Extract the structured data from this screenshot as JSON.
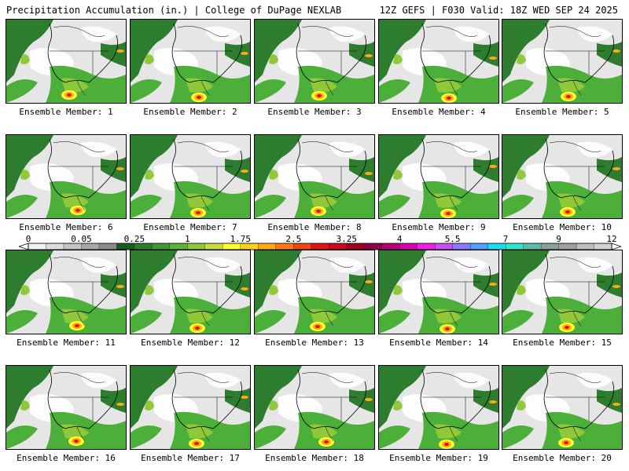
{
  "header": {
    "title_left": "Precipitation Accumulation (in.) | College of DuPage NEXLAB",
    "title_right": "12Z GEFS | F030 Valid: 18Z WED SEP 24 2025"
  },
  "members": [
    {
      "label": "Ensemble Member: 1"
    },
    {
      "label": "Ensemble Member: 2"
    },
    {
      "label": "Ensemble Member: 3"
    },
    {
      "label": "Ensemble Member: 4"
    },
    {
      "label": "Ensemble Member: 5"
    },
    {
      "label": "Ensemble Member: 6"
    },
    {
      "label": "Ensemble Member: 7"
    },
    {
      "label": "Ensemble Member: 8"
    },
    {
      "label": "Ensemble Member: 9"
    },
    {
      "label": "Ensemble Member: 10"
    },
    {
      "label": "Ensemble Member: 11"
    },
    {
      "label": "Ensemble Member: 12"
    },
    {
      "label": "Ensemble Member: 13"
    },
    {
      "label": "Ensemble Member: 14"
    },
    {
      "label": "Ensemble Member: 15"
    },
    {
      "label": "Ensemble Member: 16"
    },
    {
      "label": "Ensemble Member: 17"
    },
    {
      "label": "Ensemble Member: 18"
    },
    {
      "label": "Ensemble Member: 19"
    },
    {
      "label": "Ensemble Member: 20"
    }
  ],
  "colorbar": {
    "tick_labels": [
      "0",
      "0.05",
      "0.25",
      "1",
      "1.75",
      "2.5",
      "3.25",
      "4",
      "5.5",
      "7",
      "9",
      "12"
    ],
    "colors": [
      "#f2f2f2",
      "#dcdcdc",
      "#c4c4c4",
      "#a8a8a8",
      "#8c8c8c",
      "#1e5a1e",
      "#2e7d2e",
      "#3f9a32",
      "#58b43a",
      "#8fc93a",
      "#c8dc3c",
      "#ffff32",
      "#ffd21e",
      "#ffaa14",
      "#ff7814",
      "#f04614",
      "#dc1414",
      "#c80a1e",
      "#a0001e",
      "#8c0046",
      "#b40078",
      "#dc00b4",
      "#f01ee6",
      "#c850f0",
      "#8c78ff",
      "#50a0ff",
      "#1edcf0",
      "#32e6c8",
      "#5abeaa",
      "#8ca0a0",
      "#a0a0a0",
      "#bebebe",
      "#d2d2d2"
    ]
  },
  "colors": {
    "land_background": "#e6e6e6",
    "snow_white": "#ffffff",
    "green_dark": "#2e7d2e",
    "green_mid": "#4caf3a",
    "green_light": "#8fc93a",
    "yellow": "#ffff32",
    "orange": "#ffaa14",
    "red": "#dc1414",
    "boundary": "#000000"
  }
}
